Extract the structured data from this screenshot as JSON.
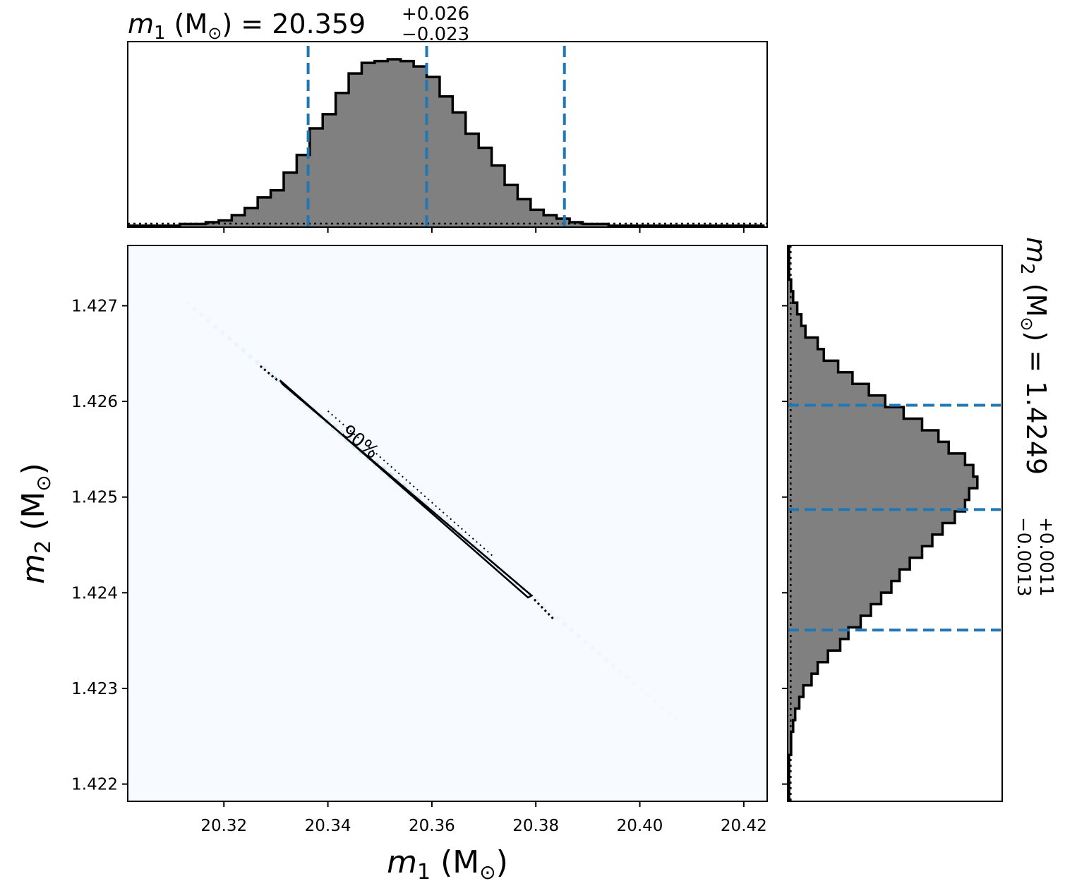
{
  "chart_data": [
    {
      "type": "histogram",
      "panel": "m1-marginal",
      "title": {
        "symbol": "m",
        "sub": "1",
        "unit": " (M",
        "unit_close": ") = ",
        "value": "20.359",
        "plus": "+0.026",
        "minus": "−0.023"
      },
      "xlim": [
        20.3015,
        20.4245
      ],
      "xticks": [
        20.32,
        20.34,
        20.36,
        20.38,
        20.4,
        20.42
      ],
      "quantiles": [
        20.3362,
        20.359,
        20.3855
      ],
      "bins_start": 20.3015,
      "bin_width": 0.0025,
      "counts": [
        0,
        0,
        0,
        0,
        1,
        1,
        2,
        3,
        6,
        10,
        16,
        20,
        30,
        40,
        55,
        63,
        75,
        86,
        92,
        93,
        94,
        93,
        90,
        84,
        73,
        64,
        52,
        44,
        34,
        23,
        15,
        9,
        6,
        4,
        2,
        1,
        1,
        0,
        0,
        0,
        0,
        0,
        0,
        0,
        0,
        0,
        0,
        0,
        0
      ],
      "dotted_baseline": 1.2,
      "ymax": 100
    },
    {
      "type": "heatmap",
      "panel": "joint",
      "xlabel": {
        "symbol": "m",
        "sub": "1",
        "unit": " (M",
        "unit_close": ")"
      },
      "ylabel": {
        "symbol": "m",
        "sub": "2",
        "unit": " (M",
        "unit_close": ")"
      },
      "xlim": [
        20.3015,
        20.4245
      ],
      "ylim": [
        1.42182,
        1.42763
      ],
      "xticks": [
        20.32,
        20.34,
        20.36,
        20.38,
        20.4,
        20.42
      ],
      "xtick_labels": [
        "20.32",
        "20.34",
        "20.36",
        "20.38",
        "20.40",
        "20.42"
      ],
      "yticks": [
        1.422,
        1.423,
        1.424,
        1.425,
        1.426,
        1.427
      ],
      "ytick_labels": [
        "1.422",
        "1.423",
        "1.424",
        "1.425",
        "1.426",
        "1.427"
      ],
      "density_line": {
        "x": [
          20.313,
          20.407
        ],
        "y": [
          1.42703,
          1.42268
        ]
      },
      "contour_90": {
        "label": "90%",
        "points": [
          [
            20.3308,
            1.42622
          ],
          [
            20.3313,
            1.42618
          ],
          [
            20.3792,
            1.42397
          ],
          [
            20.3785,
            1.42395
          ]
        ]
      }
    },
    {
      "type": "histogram",
      "panel": "m2-marginal",
      "orientation": "horizontal",
      "title": {
        "symbol": "m",
        "sub": "2",
        "unit": " (M",
        "unit_close": ") = ",
        "value": "1.4249",
        "plus": "+0.0011",
        "minus": "−0.0013"
      },
      "ylim": [
        1.42182,
        1.42763
      ],
      "yticks": [
        1.422,
        1.423,
        1.424,
        1.425,
        1.426,
        1.427
      ],
      "quantiles": [
        1.42596,
        1.42487,
        1.42361
      ],
      "bins_start": 1.42182,
      "bin_width": 0.0001212,
      "counts": [
        0,
        0,
        0,
        0,
        1,
        1,
        2,
        3,
        5,
        7,
        11,
        14,
        19,
        25,
        29,
        35,
        40,
        45,
        50,
        54,
        59,
        65,
        70,
        75,
        81,
        86,
        88,
        92,
        90,
        86,
        78,
        73,
        65,
        56,
        47,
        39,
        31,
        24,
        17,
        14,
        8,
        6,
        4,
        2,
        1,
        0,
        0,
        0
      ],
      "dotted_baseline": 0.8,
      "xmax": 100
    }
  ]
}
